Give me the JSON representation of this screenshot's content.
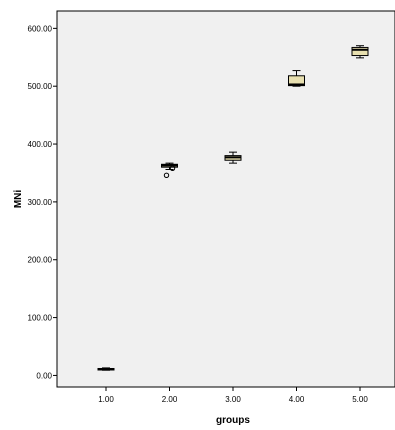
{
  "chart_data": {
    "type": "boxplot",
    "xlabel": "groups",
    "ylabel": "MNi",
    "ylim": [
      -20,
      630
    ],
    "y_ticks": [
      "0.00",
      "100.00",
      "200.00",
      "300.00",
      "400.00",
      "500.00",
      "600.00"
    ],
    "y_tick_values": [
      0,
      100,
      200,
      300,
      400,
      500,
      600
    ],
    "categories": [
      "1.00",
      "2.00",
      "3.00",
      "4.00",
      "5.00"
    ],
    "boxes": [
      {
        "category": "1.00",
        "min": 9,
        "q1": 10,
        "median": 11,
        "q3": 12,
        "max": 13,
        "outliers": []
      },
      {
        "category": "2.00",
        "min": 356,
        "q1": 360,
        "median": 363,
        "q3": 365,
        "max": 367,
        "outliers": [
          346,
          358
        ]
      },
      {
        "category": "3.00",
        "min": 367,
        "q1": 372,
        "median": 377,
        "q3": 380,
        "max": 386,
        "outliers": []
      },
      {
        "category": "4.00",
        "min": 500,
        "q1": 501,
        "median": 503,
        "q3": 518,
        "max": 527,
        "outliers": []
      },
      {
        "category": "5.00",
        "min": 549,
        "q1": 553,
        "median": 563,
        "q3": 567,
        "max": 570,
        "outliers": []
      }
    ],
    "grid": false,
    "colors": {
      "plot_bg": "#f0f0f0",
      "box_fill": "#e8e0b0",
      "stroke": "#000000"
    }
  }
}
